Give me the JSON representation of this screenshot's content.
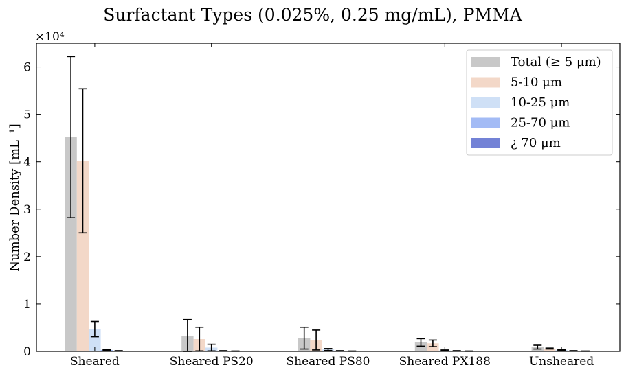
{
  "chart_data": {
    "type": "bar",
    "title": "Surfactant Types (0.025%, 0.25 mg/mL), PMMA",
    "ylabel": "Number Density [mL⁻¹]",
    "xlabel": "",
    "y_multiplier_label": "×10⁴",
    "ylim": [
      0,
      6.5
    ],
    "yticks": [
      "0",
      "1",
      "2",
      "3",
      "4",
      "5",
      "6"
    ],
    "categories": [
      "Sheared",
      "Sheared PS20",
      "Sheared PS80",
      "Sheared PX188",
      "Unsheared"
    ],
    "legend_position": "top-right",
    "grid": false,
    "series": [
      {
        "name": "Total (≥ 5 μm)",
        "color": "#c8c8c8",
        "values": [
          4.52,
          0.32,
          0.28,
          0.19,
          0.09
        ],
        "errors": [
          1.7,
          0.35,
          0.23,
          0.08,
          0.04
        ]
      },
      {
        "name": "5-10 μm",
        "color": "#f3d8c8",
        "values": [
          4.02,
          0.26,
          0.24,
          0.17,
          0.06
        ],
        "errors": [
          1.52,
          0.25,
          0.21,
          0.07,
          0.01
        ]
      },
      {
        "name": "10-25 μm",
        "color": "#cfe0f6",
        "values": [
          0.47,
          0.08,
          0.04,
          0.02,
          0.03
        ],
        "errors": [
          0.16,
          0.07,
          0.02,
          0.01,
          0.01
        ]
      },
      {
        "name": "25-70 μm",
        "color": "#a3bbf5",
        "values": [
          0.03,
          0.01,
          0.01,
          0.01,
          0.01
        ],
        "errors": [
          0.01,
          0.005,
          0.005,
          0.005,
          0.005
        ]
      },
      {
        "name": "¿ 70 μm",
        "color": "#7382d6",
        "values": [
          0.01,
          0.005,
          0.005,
          0.005,
          0.005
        ],
        "errors": [
          0.005,
          0.003,
          0.003,
          0.003,
          0.003
        ]
      }
    ]
  }
}
